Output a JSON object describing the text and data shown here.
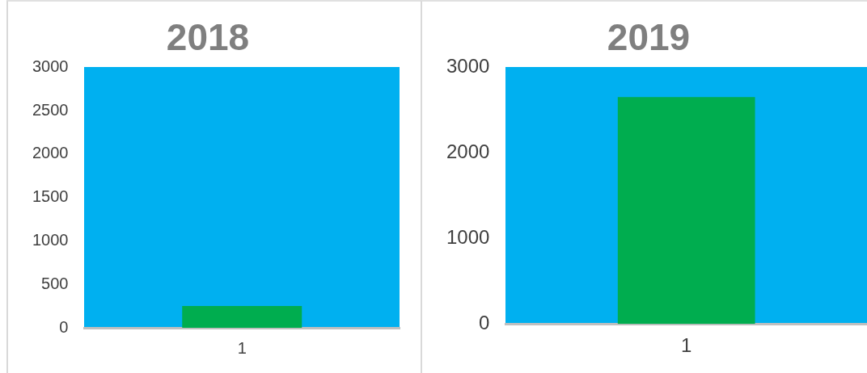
{
  "chart_data": [
    {
      "type": "bar",
      "title": "2018",
      "categories": [
        "1"
      ],
      "series": [
        {
          "color": "#00ad4f",
          "values": [
            250
          ]
        }
      ],
      "ylim": [
        0,
        3000
      ],
      "yticks": [
        0,
        500,
        1000,
        1500,
        2000,
        2500,
        3000
      ],
      "grid": false,
      "legend": false
    },
    {
      "type": "bar",
      "title": "2019",
      "categories": [
        "1"
      ],
      "series": [
        {
          "color": "#00ad4f",
          "values": [
            2650
          ]
        }
      ],
      "ylim": [
        0,
        3000
      ],
      "yticks": [
        0,
        1000,
        2000,
        3000
      ],
      "grid": false,
      "legend": false
    }
  ]
}
